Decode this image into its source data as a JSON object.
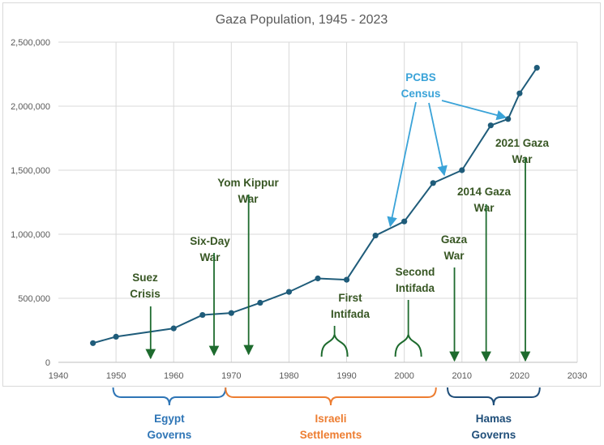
{
  "chart_data": {
    "type": "line",
    "title": "Gaza Population, 1945 - 2023",
    "xlabel": "",
    "ylabel": "",
    "xlim": [
      1940,
      2030
    ],
    "ylim": [
      0,
      2500000
    ],
    "x_ticks": [
      "1940",
      "1950",
      "1960",
      "1970",
      "1980",
      "1990",
      "2000",
      "2010",
      "2020",
      "2030"
    ],
    "y_ticks": [
      "0",
      "500,000",
      "1,000,000",
      "1,500,000",
      "2,000,000",
      "2,500,000"
    ],
    "grid": true,
    "legend": "none",
    "series": [
      {
        "color": "#1f5c7a",
        "points": [
          {
            "x": 1946,
            "y": 150000
          },
          {
            "x": 1950,
            "y": 200000
          },
          {
            "x": 1960,
            "y": 265000
          },
          {
            "x": 1965,
            "y": 370000
          },
          {
            "x": 1970,
            "y": 385000
          },
          {
            "x": 1975,
            "y": 465000
          },
          {
            "x": 1980,
            "y": 550000
          },
          {
            "x": 1985,
            "y": 655000
          },
          {
            "x": 1990,
            "y": 645000
          },
          {
            "x": 1995,
            "y": 990000
          },
          {
            "x": 2000,
            "y": 1100000
          },
          {
            "x": 2005,
            "y": 1400000
          },
          {
            "x": 2010,
            "y": 1500000
          },
          {
            "x": 2015,
            "y": 1850000
          },
          {
            "x": 2018,
            "y": 1900000
          },
          {
            "x": 2020,
            "y": 2100000
          },
          {
            "x": 2023,
            "y": 2300000
          }
        ]
      }
    ],
    "annotations": [
      {
        "text": [
          "Suez",
          "Crisis"
        ],
        "color": "#375623",
        "year": 1956,
        "arrow": true
      },
      {
        "text": [
          "Six-Day",
          "War"
        ],
        "color": "#375623",
        "year": 1967,
        "arrow": true
      },
      {
        "text": [
          "Yom Kippur",
          "War"
        ],
        "color": "#375623",
        "year": 1973,
        "arrow": true
      },
      {
        "text": [
          "First",
          "Intifada"
        ],
        "color": "#375623",
        "year": 1987.9,
        "brace": true
      },
      {
        "text": [
          "Second",
          "Intifada"
        ],
        "color": "#375623",
        "year": 2000.7,
        "brace": true
      },
      {
        "text": [
          "Gaza",
          "War"
        ],
        "color": "#375623",
        "year": 2008.7,
        "arrow": true
      },
      {
        "text": [
          "2014 Gaza",
          "War"
        ],
        "color": "#375623",
        "year": 2014.2,
        "arrow": true
      },
      {
        "text": [
          "2021 Gaza",
          "War"
        ],
        "color": "#375623",
        "year": 2021,
        "arrow": true
      }
    ],
    "census_label": {
      "text": [
        "PCBS",
        "Census"
      ],
      "color": "#3aa3d8",
      "targets": [
        1997,
        2007,
        2017
      ]
    },
    "periods": [
      {
        "label": [
          "Egypt",
          "Governs"
        ],
        "color": "#2e75b6",
        "from": 1949.5,
        "to": 1969
      },
      {
        "label": [
          "Israeli",
          "Settlements"
        ],
        "color": "#ed7d31",
        "from": 1969,
        "to": 2005.5
      },
      {
        "label": [
          "Hamas",
          "Governs"
        ],
        "color": "#1f4e79",
        "from": 2007.5,
        "to": 2023.5
      }
    ]
  }
}
